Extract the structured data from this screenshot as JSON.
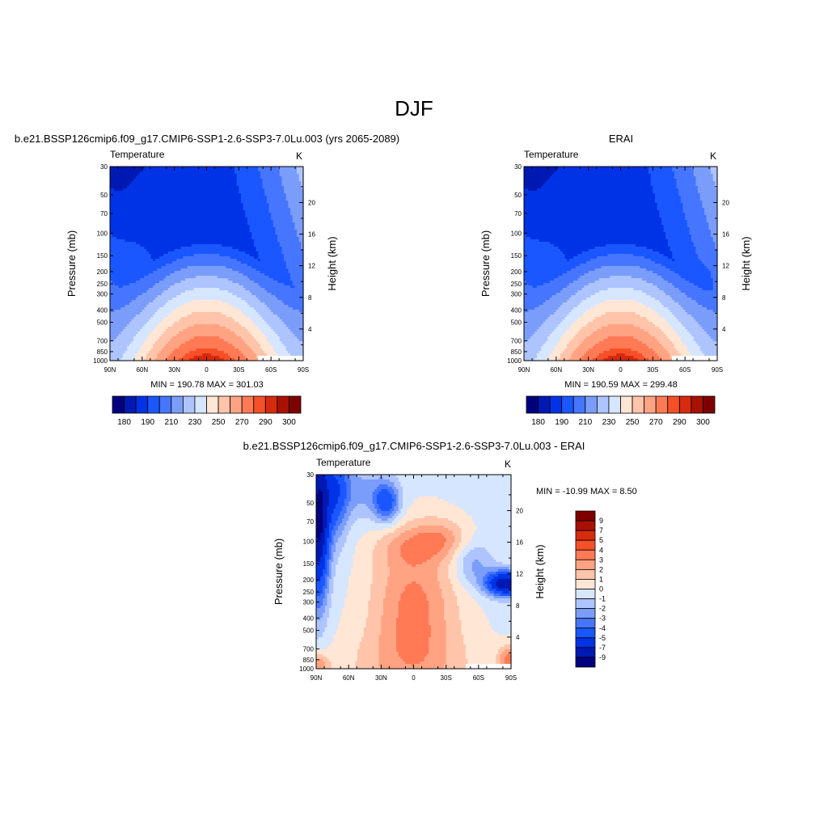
{
  "figure": {
    "title": "DJF",
    "colors": {
      "abs": [
        "#00007f",
        "#0019b3",
        "#0033e6",
        "#1a57ff",
        "#4676ff",
        "#7b9dfa",
        "#aec4ff",
        "#d6e6ff",
        "#ffe6d5",
        "#ffc4a9",
        "#ffa383",
        "#ff7a55",
        "#f55028",
        "#d72b0d",
        "#a91103",
        "#7f0000"
      ],
      "diff": [
        "#00007f",
        "#0019b3",
        "#0033e6",
        "#1a57ff",
        "#4676ff",
        "#7b9dfa",
        "#aec4ff",
        "#d6e6ff",
        "#ffe6d5",
        "#ffc4a9",
        "#ffa383",
        "#ff7a55",
        "#f55028",
        "#d72b0d",
        "#a91103",
        "#7f0000"
      ]
    }
  },
  "chart_data": [
    {
      "type": "heatmap",
      "id": "model",
      "title": "b.e21.BSSP126cmip6.f09_g17.CMIP6-SSP1-2.6-SSP3-7.0Lu.003 (yrs 2065-2089)",
      "left_label": "Temperature",
      "right_label": "K",
      "xlabel": "",
      "ylabel": "Pressure (mb)",
      "y2label": "Height (km)",
      "x_ticks": [
        "90N",
        "60N",
        "30N",
        "0",
        "30S",
        "60S",
        "90S"
      ],
      "y_ticks": [
        "30",
        "50",
        "70",
        "100",
        "150",
        "200",
        "250",
        "300",
        "400",
        "500",
        "700",
        "850",
        "1000"
      ],
      "y2_ticks": [
        "20",
        "16",
        "12",
        "8",
        "4"
      ],
      "stats": "MIN = 190.78  MAX = 301.03",
      "colorbar_labels": [
        "180",
        "190",
        "210",
        "230",
        "250",
        "270",
        "290",
        "300"
      ],
      "colorbar_levels": [
        "180",
        "185",
        "190",
        "200",
        "210",
        "220",
        "230",
        "240",
        "250",
        "260",
        "270",
        "280",
        "290",
        "295",
        "300"
      ],
      "min": 190.78,
      "max": 301.03
    },
    {
      "type": "heatmap",
      "id": "obs",
      "title": "ERAI",
      "left_label": "Temperature",
      "right_label": "K",
      "xlabel": "",
      "ylabel": "Pressure (mb)",
      "y2label": "Height (km)",
      "x_ticks": [
        "90N",
        "60N",
        "30N",
        "0",
        "30S",
        "60S",
        "90S"
      ],
      "y_ticks": [
        "30",
        "50",
        "70",
        "100",
        "150",
        "200",
        "250",
        "300",
        "400",
        "500",
        "700",
        "850",
        "1000"
      ],
      "y2_ticks": [
        "20",
        "16",
        "12",
        "8",
        "4"
      ],
      "stats": "MIN = 190.59  MAX = 299.48",
      "colorbar_labels": [
        "180",
        "190",
        "210",
        "230",
        "250",
        "270",
        "290",
        "300"
      ],
      "colorbar_levels": [
        "180",
        "185",
        "190",
        "200",
        "210",
        "220",
        "230",
        "240",
        "250",
        "260",
        "270",
        "280",
        "290",
        "295",
        "300"
      ],
      "min": 190.59,
      "max": 299.48
    },
    {
      "type": "heatmap",
      "id": "diff",
      "title": "b.e21.BSSP126cmip6.f09_g17.CMIP6-SSP1-2.6-SSP3-7.0Lu.003 - ERAI",
      "left_label": "Temperature",
      "right_label": "K",
      "xlabel": "",
      "ylabel": "Pressure (mb)",
      "y2label": "Height (km)",
      "x_ticks": [
        "90N",
        "60N",
        "30N",
        "0",
        "30S",
        "60S",
        "90S"
      ],
      "y_ticks": [
        "30",
        "50",
        "70",
        "100",
        "150",
        "200",
        "250",
        "300",
        "400",
        "500",
        "700",
        "850",
        "1000"
      ],
      "y2_ticks": [
        "20",
        "16",
        "12",
        "8",
        "4"
      ],
      "stats": "MIN = -10.99  MAX =   8.50",
      "colorbar_labels": [
        "9",
        "7",
        "5",
        "4",
        "3",
        "2",
        "1",
        "0",
        "-1",
        "-2",
        "-3",
        "-4",
        "-5",
        "-7",
        "-9"
      ],
      "min": -10.99,
      "max": 8.5
    }
  ]
}
